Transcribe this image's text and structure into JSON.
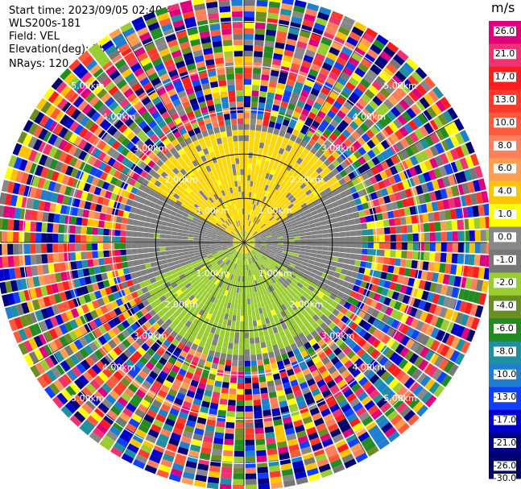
{
  "header": {
    "start_time": "Start time: 2023/09/05 02:40:41",
    "instrument": "WLS200s-181",
    "field": "Field: VEL",
    "elevation": "Elevation(deg): 35.30",
    "nrays": "NRays: 120"
  },
  "chart_data": {
    "type": "heatmap",
    "projection": "polar-ppi",
    "range_ring_labels": [
      "1.00km",
      "2.00km",
      "3.00km",
      "4.00km",
      "5.00km"
    ],
    "range_rings_km": [
      1,
      2,
      3,
      4,
      5
    ],
    "max_range_km": 5.5,
    "n_rays": 120,
    "colorbar": {
      "unit": "m/s",
      "tick_labels": [
        "26.0",
        "21.0",
        "17.0",
        "13.0",
        "10.0",
        "8.0",
        "6.0",
        "4.0",
        "1.0",
        "0.0",
        "-1.0",
        "-2.0",
        "-4.0",
        "-6.0",
        "-8.0",
        "-10.0",
        "-13.0",
        "-17.0",
        "-21.0",
        "-26.0",
        "-30.0"
      ],
      "colors": [
        "#e0007f",
        "#f03270",
        "#ff1c1c",
        "#ff3a2a",
        "#ff5a3c",
        "#ff7f5a",
        "#ff9e50",
        "#ffc400",
        "#ffff00",
        "#888888",
        "#777777",
        "#9acd32",
        "#6b8e23",
        "#228b22",
        "#1e90a0",
        "#1e7fd0",
        "#1040ff",
        "#0000cd",
        "#000080",
        "#00006b"
      ]
    },
    "sectors": [
      {
        "name": "positive",
        "azimuth_deg": [
          300,
          60
        ],
        "color_hint": "#ffd700"
      },
      {
        "name": "negative",
        "azimuth_deg": [
          120,
          250
        ],
        "color_hint": "#9acd32"
      }
    ]
  }
}
